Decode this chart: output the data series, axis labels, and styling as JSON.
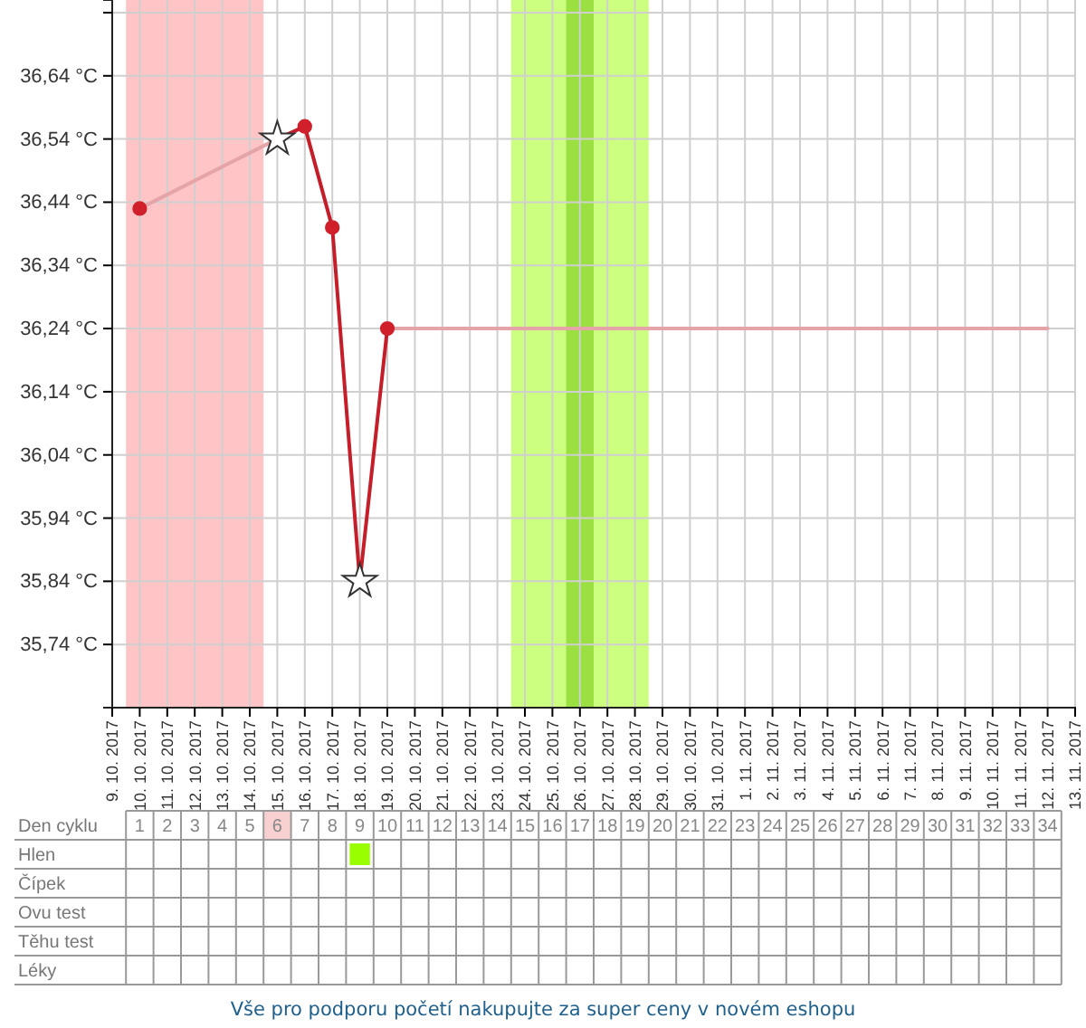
{
  "chart_data": {
    "type": "line",
    "grid": true,
    "ylim": [
      35.64,
      36.76
    ],
    "yticks": [
      {
        "value": 35.74,
        "label": "35,74 °C"
      },
      {
        "value": 35.84,
        "label": "35,84 °C"
      },
      {
        "value": 35.94,
        "label": "35,94 °C"
      },
      {
        "value": 36.04,
        "label": "36,04 °C"
      },
      {
        "value": 36.14,
        "label": "36,14 °C"
      },
      {
        "value": 36.24,
        "label": "36,24 °C"
      },
      {
        "value": 36.34,
        "label": "36,34 °C"
      },
      {
        "value": 36.44,
        "label": "36,44 °C"
      },
      {
        "value": 36.54,
        "label": "36,54 °C"
      },
      {
        "value": 36.64,
        "label": "36,64 °C"
      },
      {
        "value": 36.74,
        "label": null
      }
    ],
    "xlim": [
      "2017-10-09",
      "2017-11-13"
    ],
    "xticks": [
      {
        "value": "2017-10-09",
        "label": "9. 10. 2017"
      },
      {
        "value": "2017-10-10",
        "label": "10. 10. 2017"
      },
      {
        "value": "2017-10-11",
        "label": "11. 10. 2017"
      },
      {
        "value": "2017-10-12",
        "label": "12. 10. 2017"
      },
      {
        "value": "2017-10-13",
        "label": "13. 10. 2017"
      },
      {
        "value": "2017-10-14",
        "label": "14. 10. 2017"
      },
      {
        "value": "2017-10-15",
        "label": "15. 10. 2017"
      },
      {
        "value": "2017-10-16",
        "label": "16. 10. 2017"
      },
      {
        "value": "2017-10-17",
        "label": "17. 10. 2017"
      },
      {
        "value": "2017-10-18",
        "label": "18. 10. 2017"
      },
      {
        "value": "2017-10-19",
        "label": "19. 10. 2017"
      },
      {
        "value": "2017-10-20",
        "label": "20. 10. 2017"
      },
      {
        "value": "2017-10-21",
        "label": "21. 10. 2017"
      },
      {
        "value": "2017-10-22",
        "label": "22. 10. 2017"
      },
      {
        "value": "2017-10-23",
        "label": "23. 10. 2017"
      },
      {
        "value": "2017-10-24",
        "label": "24. 10. 2017"
      },
      {
        "value": "2017-10-25",
        "label": "25. 10. 2017"
      },
      {
        "value": "2017-10-26",
        "label": "26. 10. 2017"
      },
      {
        "value": "2017-10-27",
        "label": "27. 10. 2017"
      },
      {
        "value": "2017-10-28",
        "label": "28. 10. 2017"
      },
      {
        "value": "2017-10-29",
        "label": "29. 10. 2017"
      },
      {
        "value": "2017-10-30",
        "label": "30. 10. 2017"
      },
      {
        "value": "2017-10-31",
        "label": "31. 10. 2017"
      },
      {
        "value": "2017-11-01",
        "label": "1. 11. 2017"
      },
      {
        "value": "2017-11-02",
        "label": "2. 11. 2017"
      },
      {
        "value": "2017-11-03",
        "label": "3. 11. 2017"
      },
      {
        "value": "2017-11-04",
        "label": "4. 11. 2017"
      },
      {
        "value": "2017-11-05",
        "label": "5. 11. 2017"
      },
      {
        "value": "2017-11-06",
        "label": "6. 11. 2017"
      },
      {
        "value": "2017-11-07",
        "label": "7. 11. 2017"
      },
      {
        "value": "2017-11-08",
        "label": "8. 11. 2017"
      },
      {
        "value": "2017-11-09",
        "label": "9. 11. 2017"
      },
      {
        "value": "2017-11-10",
        "label": "10. 11. 2017"
      },
      {
        "value": "2017-11-11",
        "label": "11. 11. 2017"
      },
      {
        "value": "2017-11-12",
        "label": "12. 11. 2017"
      },
      {
        "value": "2017-11-13",
        "label": "13. 11. 2017"
      }
    ],
    "x2label": "Den cyklu",
    "x2lim": [
      "2017-10-09",
      "2017-11-13"
    ],
    "x2ticks": [
      {
        "value": "2017-10-10",
        "label": "1"
      },
      {
        "value": "2017-10-11",
        "label": "2"
      },
      {
        "value": "2017-10-12",
        "label": "3"
      },
      {
        "value": "2017-10-13",
        "label": "4"
      },
      {
        "value": "2017-10-14",
        "label": "5"
      },
      {
        "value": "2017-10-15",
        "label": "6"
      },
      {
        "value": "2017-10-16",
        "label": "7"
      },
      {
        "value": "2017-10-17",
        "label": "8"
      },
      {
        "value": "2017-10-18",
        "label": "9"
      },
      {
        "value": "2017-10-19",
        "label": "10"
      },
      {
        "value": "2017-10-20",
        "label": "11"
      },
      {
        "value": "2017-10-21",
        "label": "12"
      },
      {
        "value": "2017-10-22",
        "label": "13"
      },
      {
        "value": "2017-10-23",
        "label": "14"
      },
      {
        "value": "2017-10-24",
        "label": "15"
      },
      {
        "value": "2017-10-25",
        "label": "16"
      },
      {
        "value": "2017-10-26",
        "label": "17"
      },
      {
        "value": "2017-10-27",
        "label": "18"
      },
      {
        "value": "2017-10-28",
        "label": "19"
      },
      {
        "value": "2017-10-29",
        "label": "20"
      },
      {
        "value": "2017-10-30",
        "label": "21"
      },
      {
        "value": "2017-10-31",
        "label": "22"
      },
      {
        "value": "2017-11-01",
        "label": "23"
      },
      {
        "value": "2017-11-02",
        "label": "24"
      },
      {
        "value": "2017-11-03",
        "label": "25"
      },
      {
        "value": "2017-11-04",
        "label": "26"
      },
      {
        "value": "2017-11-05",
        "label": "27"
      },
      {
        "value": "2017-11-06",
        "label": "28"
      },
      {
        "value": "2017-11-07",
        "label": "29"
      },
      {
        "value": "2017-11-08",
        "label": "30"
      },
      {
        "value": "2017-11-09",
        "label": "31"
      },
      {
        "value": "2017-11-10",
        "label": "32"
      },
      {
        "value": "2017-11-11",
        "label": "33"
      },
      {
        "value": "2017-11-12",
        "label": "34"
      }
    ],
    "bands": [
      {
        "axis": "x",
        "from": "2017-10-09T12:00",
        "to": "2017-10-14T12:00",
        "color": "#ffc4c6"
      },
      {
        "axis": "x",
        "from": "2017-10-23T12:00",
        "to": "2017-10-28T12:00",
        "color": "#ccff80"
      },
      {
        "axis": "x",
        "from": "2017-10-25T12:00",
        "to": "2017-10-26T12:00",
        "color": "#99e040"
      }
    ],
    "series": [
      {
        "type": "line",
        "color": "#e4a4a8",
        "marker": "none",
        "x": [
          "2017-10-10",
          "2017-10-15",
          "2017-10-17",
          "2017-10-19",
          "2017-11-12"
        ],
        "values": [
          36.43,
          36.54,
          null,
          36.24,
          36.24
        ]
      },
      {
        "type": "line",
        "color": "#c41e2a",
        "marker": "none",
        "x": [
          "2017-10-15",
          "2017-10-16",
          "2017-10-17",
          "2017-10-18",
          "2017-10-19"
        ],
        "values": [
          36.54,
          36.56,
          36.4,
          35.84,
          36.24
        ]
      },
      {
        "type": "scatter",
        "color": "#d0202c",
        "marker": "circle",
        "x": [
          "2017-10-10",
          "2017-10-16",
          "2017-10-17",
          "2017-10-19"
        ],
        "values": [
          36.43,
          36.56,
          36.4,
          36.24
        ]
      },
      {
        "type": "scatter",
        "color": "#ffffff",
        "marker": "star",
        "x": [
          "2017-10-15",
          "2017-10-18"
        ],
        "values": [
          36.54,
          35.84
        ]
      }
    ],
    "annotations": [
      "Hlen",
      "Čípek",
      "Ovu test",
      "Těhu test",
      "Léky",
      "Vše pro podporu početí nakupujte za super ceny v novém eshopu"
    ]
  }
}
